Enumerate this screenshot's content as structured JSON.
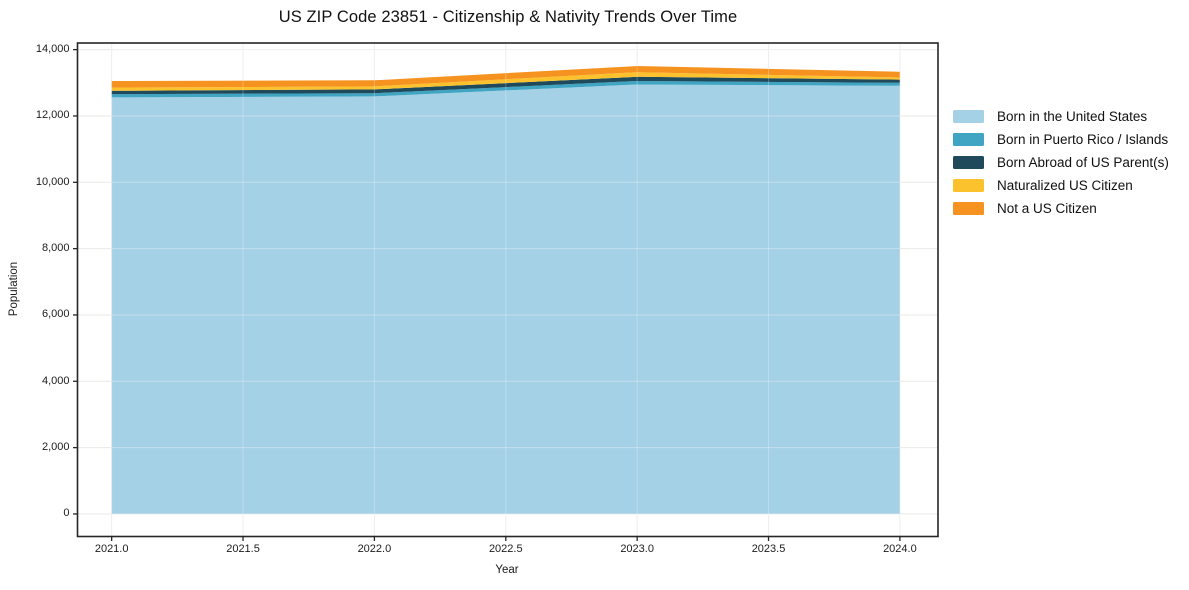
{
  "title": "US ZIP Code 23851 - Citizenship & Nativity Trends Over Time",
  "chart_data": {
    "type": "area",
    "stacked": true,
    "title": "US ZIP Code 23851 - Citizenship & Nativity Trends Over Time",
    "xlabel": "Year",
    "ylabel": "Population",
    "x": [
      2021,
      2022,
      2023,
      2024
    ],
    "series": [
      {
        "name": "Born in the United States",
        "color": "#a5d1e6",
        "values": [
          12560,
          12590,
          12950,
          12910
        ]
      },
      {
        "name": "Born in Puerto Rico / Islands",
        "color": "#3fa5c3",
        "values": [
          95,
          95,
          105,
          90
        ]
      },
      {
        "name": "Born Abroad of US Parent(s)",
        "color": "#1e4a5c",
        "values": [
          105,
          115,
          125,
          95
        ]
      },
      {
        "name": "Naturalized US Citizen",
        "color": "#fcc22e",
        "values": [
          95,
          90,
          140,
          65
        ]
      },
      {
        "name": "Not a US Citizen",
        "color": "#f69320",
        "values": [
          200,
          185,
          185,
          175
        ]
      }
    ],
    "x_ticks": [
      "2021.0",
      "2021.5",
      "2022.0",
      "2022.5",
      "2023.0",
      "2023.5",
      "2024.0"
    ],
    "x_tick_values": [
      2021,
      2021.5,
      2022,
      2022.5,
      2023,
      2023.5,
      2024
    ],
    "y_ticks": [
      "0",
      "2,000",
      "4,000",
      "6,000",
      "8,000",
      "10,000",
      "12,000",
      "14,000"
    ],
    "y_tick_values": [
      0,
      2000,
      4000,
      6000,
      8000,
      10000,
      12000,
      14000
    ],
    "xlim": [
      2020.87,
      2024.145
    ],
    "ylim": [
      -680,
      14200
    ],
    "grid": true,
    "gridline_color": "#e9e9e9",
    "frame_color": "#262626",
    "legend_position": "right outside"
  }
}
